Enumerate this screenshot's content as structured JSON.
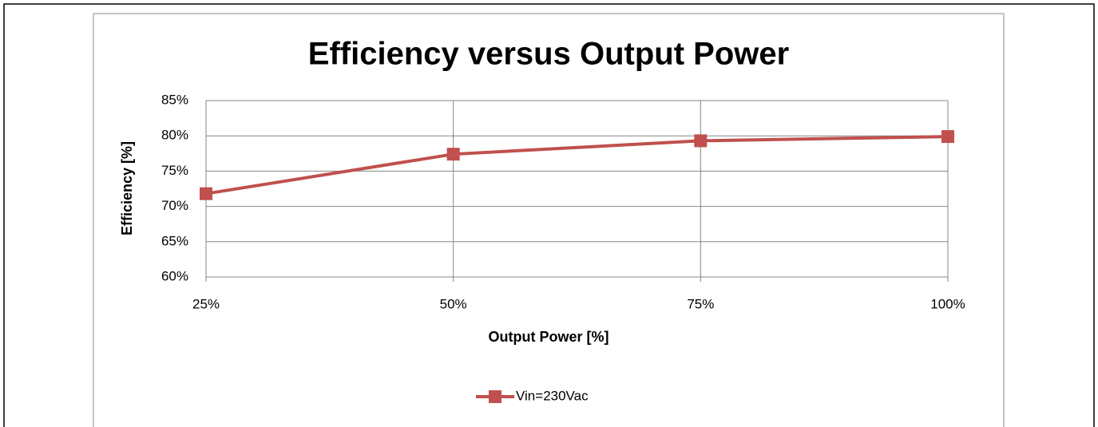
{
  "chart_data": {
    "type": "line",
    "title": "Efficiency versus Output Power",
    "x_label": "Output Power [%]",
    "y_label": "Efficiency [%]",
    "x": [
      25,
      50,
      75,
      100
    ],
    "series": [
      {
        "name": "Vin=230Vac",
        "color": "#c0504d",
        "values": [
          71.8,
          77.4,
          79.3,
          79.9
        ]
      }
    ],
    "xlim": [
      25,
      100
    ],
    "xticks": [
      {
        "value": 25,
        "label": "25%"
      },
      {
        "value": 50,
        "label": "50%"
      },
      {
        "value": 75,
        "label": "75%"
      },
      {
        "value": 100,
        "label": "100%"
      }
    ],
    "ylim": [
      60,
      85
    ],
    "yticks": [
      {
        "value": 60,
        "label": "60%"
      },
      {
        "value": 65,
        "label": "65%"
      },
      {
        "value": 70,
        "label": "70%"
      },
      {
        "value": 75,
        "label": "75%"
      },
      {
        "value": 80,
        "label": "80%"
      },
      {
        "value": 85,
        "label": "85%"
      }
    ],
    "grid": true,
    "legend": "bottom"
  }
}
